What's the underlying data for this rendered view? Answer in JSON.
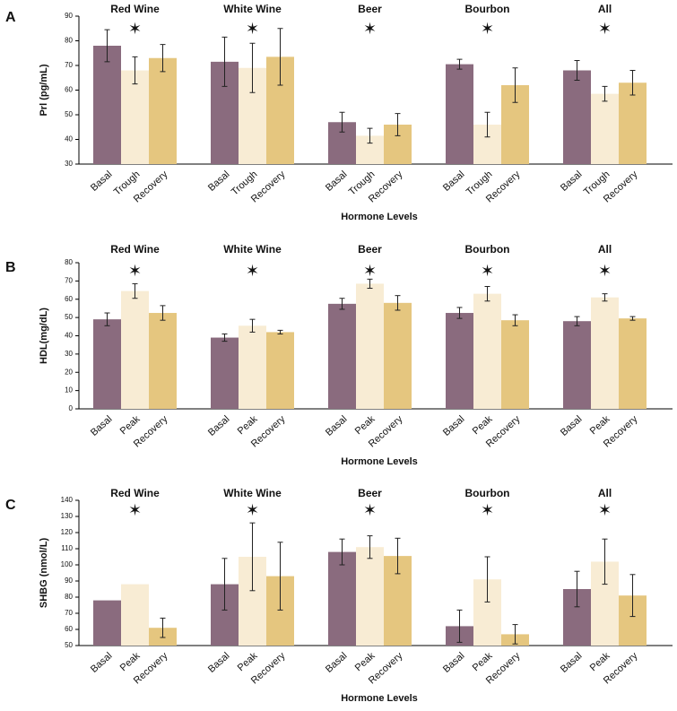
{
  "chart_data": [
    {
      "type": "bar",
      "panel": "A",
      "ylabel": "Prl (pg/mL)",
      "xlabel": "Hormone Levels",
      "categories": [
        "Red Wine",
        "White Wine",
        "Beer",
        "Bourbon",
        "All"
      ],
      "annotations": [
        "✶",
        "✶",
        "✶",
        "✶",
        "✶"
      ],
      "ylim": [
        30,
        90
      ],
      "yticks": [
        30,
        40,
        50,
        60,
        70,
        80,
        90
      ],
      "series": [
        {
          "name": "Basal",
          "color": "#8a6b7e",
          "values": [
            78,
            71.5,
            47,
            70.5,
            68
          ],
          "errors": [
            6.5,
            10,
            4,
            2,
            4
          ]
        },
        {
          "name": "Trough",
          "color": "#f8ecd4",
          "values": [
            68,
            69,
            41.5,
            46,
            58.5
          ],
          "errors": [
            5.5,
            10,
            3,
            5,
            3
          ]
        },
        {
          "name": "Recovery",
          "color": "#e5c67f",
          "values": [
            73,
            73.5,
            46,
            62,
            63
          ],
          "errors": [
            5.5,
            11.5,
            4.5,
            7,
            5
          ]
        }
      ]
    },
    {
      "type": "bar",
      "panel": "B",
      "ylabel": "HDL(mg/dL)",
      "xlabel": "Hormone Levels",
      "categories": [
        "Red Wine",
        "White Wine",
        "Beer",
        "Bourbon",
        "All"
      ],
      "annotations": [
        "✶",
        "✶",
        "✶",
        "✶",
        "✶"
      ],
      "ylim": [
        0,
        80
      ],
      "yticks": [
        0,
        10,
        20,
        30,
        40,
        50,
        60,
        70,
        80
      ],
      "series": [
        {
          "name": "Basal",
          "color": "#8a6b7e",
          "values": [
            49,
            39,
            57.5,
            52.5,
            48
          ],
          "errors": [
            3.5,
            2,
            3,
            3,
            2.5
          ]
        },
        {
          "name": "Peak",
          "color": "#f8ecd4",
          "values": [
            64.5,
            45.5,
            68.5,
            63,
            61
          ],
          "errors": [
            4,
            3.5,
            2.5,
            4,
            2
          ]
        },
        {
          "name": "Recovery",
          "color": "#e5c67f",
          "values": [
            52.5,
            42,
            58,
            48.5,
            49.5
          ],
          "errors": [
            4,
            1,
            4,
            3,
            1
          ]
        }
      ]
    },
    {
      "type": "bar",
      "panel": "C",
      "ylabel": "SHBG (nmol/L)",
      "xlabel": "Hormone Levels",
      "categories": [
        "Red Wine",
        "White Wine",
        "Beer",
        "Bourbon",
        "All"
      ],
      "annotations": [
        "✶",
        "✶",
        "✶",
        "✶",
        "✶"
      ],
      "ylim": [
        50,
        140
      ],
      "yticks": [
        50,
        60,
        70,
        80,
        90,
        100,
        110,
        120,
        130,
        140
      ],
      "series": [
        {
          "name": "Basal",
          "color": "#8a6b7e",
          "values": [
            78,
            88,
            108,
            62,
            85
          ],
          "errors": [
            null,
            16,
            8,
            10,
            11
          ]
        },
        {
          "name": "Peak",
          "color": "#f8ecd4",
          "values": [
            88,
            105,
            111,
            91,
            102
          ],
          "errors": [
            null,
            21,
            7,
            14,
            14
          ]
        },
        {
          "name": "Recovery",
          "color": "#e5c67f",
          "values": [
            61,
            93,
            105.5,
            57,
            81
          ],
          "errors": [
            6,
            21,
            11,
            6,
            13
          ]
        }
      ]
    }
  ]
}
